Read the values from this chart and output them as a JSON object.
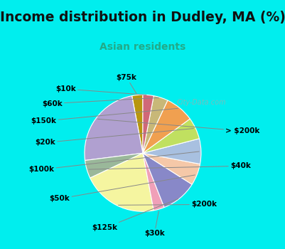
{
  "title": "Income distribution in Dudley, MA (%)",
  "subtitle": "Asian residents",
  "title_color": "#111111",
  "subtitle_color": "#22aa88",
  "background_top": "#00eeee",
  "background_chart_color": "#e8f5ee",
  "watermark": "City-Data.com",
  "labels": [
    "$75k",
    "> $200k",
    "$40k",
    "$200k",
    "$30k",
    "$125k",
    "$50k",
    "$100k",
    "$20k",
    "$150k",
    "$60k",
    "$10k"
  ],
  "sizes": [
    3,
    24,
    5,
    21,
    3,
    10,
    6,
    7,
    6,
    8,
    4,
    3
  ],
  "colors": [
    "#b8960e",
    "#b0a0d0",
    "#9ab89a",
    "#f5f5a0",
    "#f0a0b8",
    "#8888c8",
    "#f5c8a8",
    "#a8c0e0",
    "#c0e060",
    "#f0a050",
    "#c8b878",
    "#d06878"
  ],
  "startangle": 90,
  "label_fontsize": 7.5,
  "title_fontsize": 13.5,
  "subtitle_fontsize": 10
}
